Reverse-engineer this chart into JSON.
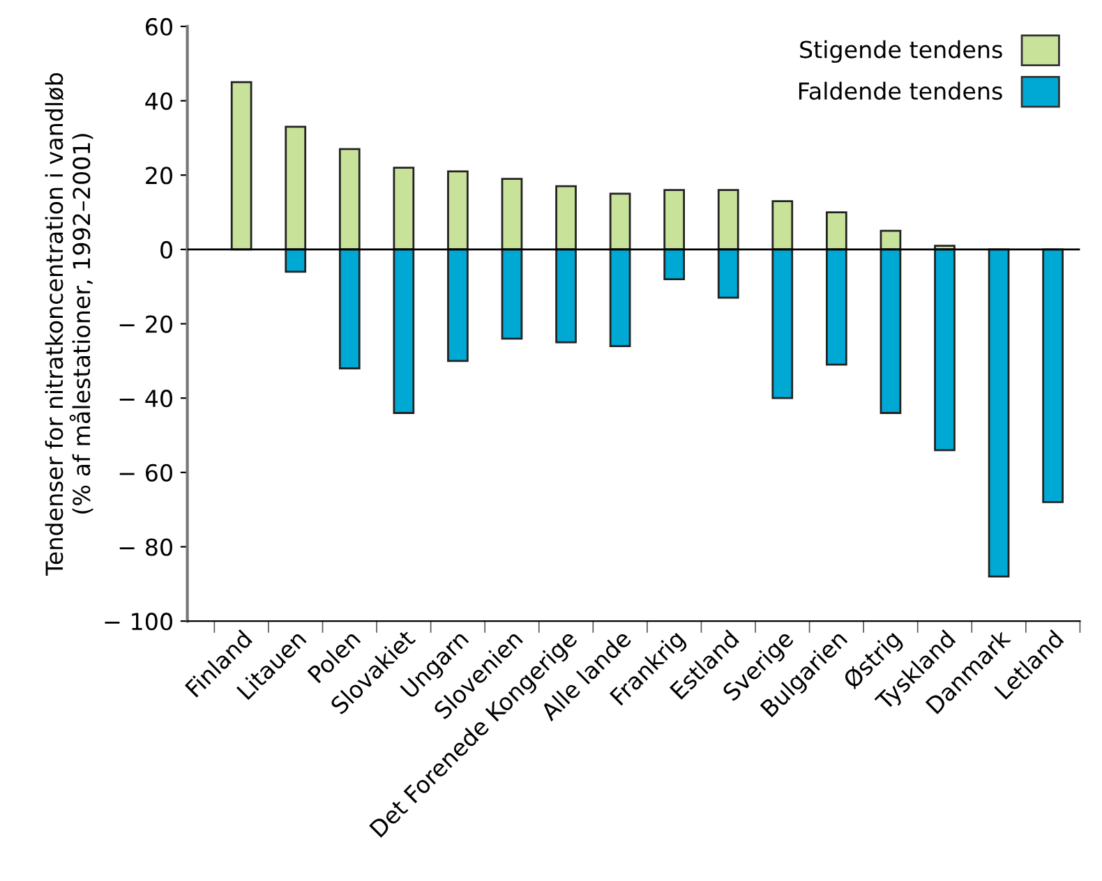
{
  "chart_data": {
    "type": "bar",
    "stacked": true,
    "ylabel": "Tendenser for nitratkoncentration i vandløb\n(% af målestationer, 1992–2001)",
    "categories": [
      "Finland",
      "Litauen",
      "Polen",
      "Slovakiet",
      "Ungarn",
      "Slovenien",
      "Det Forenede Kongerige",
      "Alle lande",
      "Frankrig",
      "Estland",
      "Sverige",
      "Bulgarien",
      "Østrig",
      "Tyskland",
      "Danmark",
      "Letland"
    ],
    "series": [
      {
        "name": "Stigende tendens",
        "color": "#c8e29a",
        "values": [
          45,
          33,
          27,
          22,
          21,
          19,
          17,
          15,
          16,
          16,
          13,
          10,
          5,
          1,
          null,
          null
        ]
      },
      {
        "name": "Faldende tendens",
        "color": "#00a8d4",
        "values": [
          null,
          -6,
          -32,
          -44,
          -30,
          -24,
          -25,
          -26,
          -8,
          -13,
          -40,
          -31,
          -44,
          -54,
          -88,
          -68
        ]
      }
    ],
    "ylim": [
      -100,
      60
    ],
    "yticks": [
      {
        "value": -100,
        "label": "− 100"
      },
      {
        "value": -80,
        "label": "− 80"
      },
      {
        "value": -60,
        "label": "− 60"
      },
      {
        "value": -40,
        "label": "− 40"
      },
      {
        "value": -20,
        "label": "− 20"
      },
      0,
      20,
      40,
      60
    ],
    "ref_lines": [
      {
        "axis": "y",
        "value": 0,
        "color": "#000000"
      }
    ],
    "legend": "top right",
    "grid": false
  }
}
